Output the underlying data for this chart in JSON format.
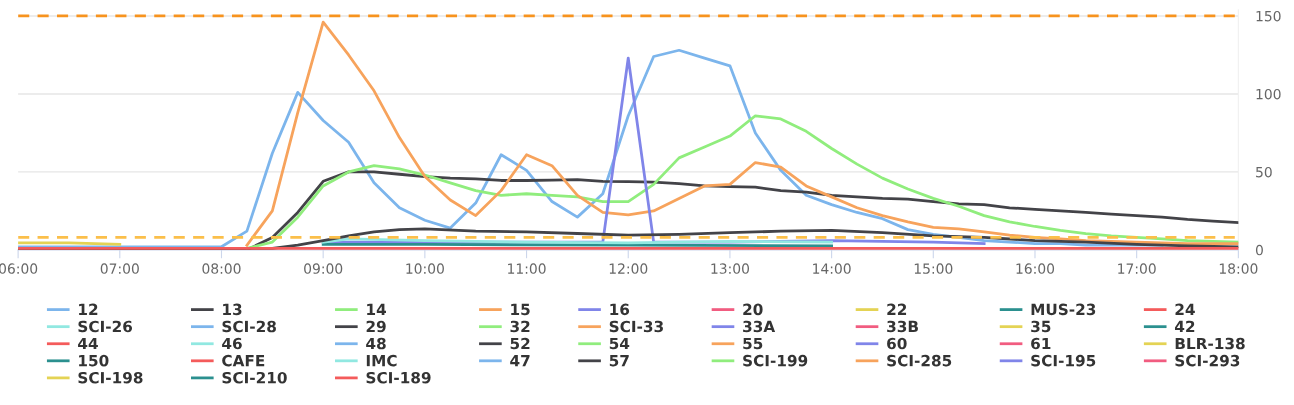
{
  "chart_data": {
    "type": "line",
    "x": [
      6,
      6.25,
      6.5,
      6.75,
      7,
      7.25,
      7.5,
      7.75,
      8,
      8.25,
      8.5,
      8.75,
      9,
      9.25,
      9.5,
      9.75,
      10,
      10.25,
      10.5,
      10.75,
      11,
      11.25,
      11.5,
      11.75,
      12,
      12.25,
      12.5,
      12.75,
      13,
      13.25,
      13.5,
      13.75,
      14,
      14.25,
      14.5,
      14.75,
      15,
      15.25,
      15.5,
      15.75,
      16,
      16.25,
      16.5,
      16.75,
      17,
      17.25,
      17.5,
      17.75,
      18
    ],
    "xlim": [
      6,
      18
    ],
    "xticks": [
      {
        "value": 6,
        "label": "06:00"
      },
      {
        "value": 7,
        "label": "07:00"
      },
      {
        "value": 8,
        "label": "08:00"
      },
      {
        "value": 9,
        "label": "09:00"
      },
      {
        "value": 10,
        "label": "10:00"
      },
      {
        "value": 11,
        "label": "11:00"
      },
      {
        "value": 12,
        "label": "12:00"
      },
      {
        "value": 13,
        "label": "13:00"
      },
      {
        "value": 14,
        "label": "14:00"
      },
      {
        "value": 15,
        "label": "15:00"
      },
      {
        "value": 16,
        "label": "16:00"
      },
      {
        "value": 17,
        "label": "17:00"
      },
      {
        "value": 18,
        "label": "18:00"
      }
    ],
    "ylim": [
      0,
      154
    ],
    "yticks": [
      0,
      50,
      100,
      150
    ],
    "grid": "y",
    "legend": "bottom",
    "marker": "none",
    "line_style": "solid",
    "ref_lines": [
      {
        "axis": "y",
        "value": 150,
        "color": "#f7931e",
        "line_style": "dashed"
      },
      {
        "axis": "y",
        "value": 8,
        "color": "#fbbf4a",
        "line_style": "dashed"
      }
    ],
    "series": [
      {
        "name": "12",
        "color": "#7cb5ec",
        "values": [
          2,
          2,
          2,
          2,
          2,
          2,
          2,
          2,
          2,
          12,
          62,
          101,
          83,
          69,
          43,
          27,
          19,
          14,
          30,
          61,
          51,
          31,
          21,
          36,
          86,
          124,
          128,
          123,
          118,
          75,
          51,
          35,
          29,
          24,
          20,
          13,
          10,
          8,
          6,
          5,
          4,
          4,
          3,
          3,
          3,
          3,
          null,
          null,
          null
        ]
      },
      {
        "name": "13",
        "color": "#434348",
        "values": [
          null,
          null,
          null,
          null,
          null,
          null,
          null,
          null,
          0,
          0,
          8,
          24,
          44,
          50,
          50,
          48.5,
          47,
          46,
          45.5,
          44.5,
          44.5,
          44.7,
          45,
          44,
          43.7,
          43.4,
          42.5,
          41,
          40.5,
          40.2,
          38,
          37,
          35,
          34,
          33,
          32.5,
          31,
          29.5,
          29,
          27,
          26,
          25,
          24,
          23,
          22,
          21,
          19.5,
          18.5,
          17.5
        ]
      },
      {
        "name": "14",
        "color": "#90ed7d",
        "values": [
          null,
          null,
          null,
          null,
          null,
          null,
          null,
          null,
          null,
          1,
          5,
          21,
          41,
          50,
          54,
          52,
          48,
          43,
          38,
          35,
          36,
          35,
          34,
          31,
          31,
          42,
          59,
          66,
          73,
          86,
          84,
          76,
          65,
          55,
          46,
          39,
          33,
          28,
          22,
          18,
          15,
          12.5,
          10.5,
          9,
          8,
          7,
          6,
          5.5,
          5
        ]
      },
      {
        "name": "15",
        "color": "#f7a35c",
        "values": [
          null,
          null,
          null,
          null,
          null,
          null,
          null,
          null,
          null,
          3,
          25,
          88,
          146,
          125,
          102,
          72,
          47,
          32,
          22,
          38,
          61,
          54,
          35,
          24,
          22.5,
          25,
          33,
          41,
          42,
          56,
          53,
          41,
          34,
          27,
          22,
          18,
          14.5,
          13.5,
          11.5,
          9.5,
          8,
          7,
          6,
          5.5,
          5,
          4.5,
          4,
          4,
          4
        ]
      },
      {
        "name": "16",
        "color": "#8085e9",
        "x": [
          9,
          11.75,
          12,
          12.25,
          13,
          14,
          15,
          15.5
        ],
        "values": [
          5,
          5,
          123,
          5,
          5,
          6,
          5,
          4
        ]
      },
      {
        "name": "20",
        "color": "#f15c80",
        "values": [
          null,
          null,
          null,
          null,
          null,
          null,
          null,
          null,
          null,
          null,
          null,
          null,
          null,
          null,
          null,
          null,
          null,
          null,
          null,
          null,
          null,
          null,
          null,
          null,
          null,
          null,
          null,
          null,
          null,
          null,
          null,
          null,
          null,
          null,
          null,
          null,
          null,
          null,
          null,
          null,
          null,
          null,
          null,
          null,
          null,
          null,
          null,
          null,
          null
        ]
      },
      {
        "name": "22",
        "color": "#e4d354",
        "x": [
          6,
          6.5,
          7
        ],
        "values": [
          4.5,
          4.5,
          3.5
        ]
      },
      {
        "name": "MUS-23",
        "color": "#2b908f",
        "x": [
          9,
          10,
          12,
          14
        ],
        "values": [
          3.5,
          3.5,
          3,
          2.5
        ]
      },
      {
        "name": "24",
        "color": "#f45b5b",
        "values": [
          null,
          null,
          null,
          null,
          null,
          null,
          null,
          null,
          null,
          null,
          null,
          null,
          null,
          null,
          null,
          null,
          null,
          null,
          null,
          null,
          null,
          null,
          null,
          null,
          null,
          null,
          null,
          null,
          null,
          null,
          null,
          null,
          null,
          null,
          null,
          null,
          null,
          null,
          null,
          null,
          null,
          null,
          null,
          null,
          null,
          null,
          null,
          null,
          null
        ]
      },
      {
        "name": "SCI-26",
        "color": "#91e8e1",
        "x": [
          9,
          9.25,
          10,
          11,
          12,
          13,
          14
        ],
        "values": [
          5,
          7,
          6,
          5,
          4.5,
          5.5,
          5
        ]
      },
      {
        "name": "SCI-28",
        "color": "#7cb5ec",
        "values": [
          null,
          null,
          null,
          null,
          null,
          null,
          null,
          null,
          null,
          null,
          null,
          null,
          null,
          null,
          null,
          null,
          null,
          null,
          null,
          null,
          null,
          null,
          null,
          null,
          null,
          null,
          null,
          null,
          null,
          null,
          null,
          null,
          null,
          null,
          null,
          null,
          null,
          null,
          null,
          null,
          null,
          null,
          null,
          null,
          null,
          null,
          null,
          null,
          null
        ]
      },
      {
        "name": "29",
        "color": "#434348",
        "x": [
          6,
          8.5,
          8.75,
          9,
          9.25,
          9.5,
          9.75,
          10,
          10.5,
          11,
          11.5,
          12,
          12.5,
          13,
          13.5,
          14,
          14.5,
          15,
          15.5,
          16,
          16.5,
          17,
          17.5,
          18
        ],
        "values": [
          0,
          1,
          3,
          6,
          9,
          11.5,
          13,
          13.5,
          12,
          11.5,
          10.5,
          9.5,
          10,
          11,
          12,
          12.5,
          11,
          9,
          8,
          6,
          5,
          3.5,
          2.5,
          2
        ]
      },
      {
        "name": "32",
        "color": "#90ed7d",
        "values": [
          null,
          null,
          null,
          null,
          null,
          null,
          null,
          null,
          null,
          null,
          null,
          null,
          null,
          null,
          null,
          null,
          null,
          null,
          null,
          null,
          null,
          null,
          null,
          null,
          null,
          null,
          null,
          null,
          null,
          null,
          null,
          null,
          null,
          null,
          null,
          null,
          null,
          null,
          null,
          null,
          null,
          null,
          null,
          null,
          null,
          null,
          null,
          null,
          null
        ]
      },
      {
        "name": "SCI-33",
        "color": "#f7a35c",
        "values": [
          null,
          null,
          null,
          null,
          null,
          null,
          null,
          null,
          null,
          null,
          null,
          null,
          null,
          null,
          null,
          null,
          null,
          null,
          null,
          null,
          null,
          null,
          null,
          null,
          null,
          null,
          null,
          null,
          null,
          null,
          null,
          null,
          null,
          null,
          null,
          null,
          null,
          null,
          null,
          null,
          null,
          null,
          null,
          null,
          null,
          null,
          null,
          null,
          null
        ]
      },
      {
        "name": "33A",
        "color": "#8085e9",
        "values": [
          null,
          null,
          null,
          null,
          null,
          null,
          null,
          null,
          null,
          null,
          null,
          null,
          null,
          null,
          null,
          null,
          null,
          null,
          null,
          null,
          null,
          null,
          null,
          null,
          null,
          null,
          null,
          null,
          null,
          null,
          null,
          null,
          null,
          null,
          null,
          null,
          null,
          null,
          null,
          null,
          null,
          null,
          null,
          null,
          null,
          null,
          null,
          null,
          null
        ]
      },
      {
        "name": "33B",
        "color": "#f15c80",
        "values": [
          null,
          null,
          null,
          null,
          null,
          null,
          null,
          null,
          null,
          null,
          null,
          null,
          null,
          null,
          null,
          null,
          null,
          null,
          null,
          null,
          null,
          null,
          null,
          null,
          null,
          null,
          null,
          null,
          null,
          null,
          null,
          null,
          null,
          null,
          null,
          null,
          null,
          null,
          null,
          null,
          null,
          null,
          null,
          null,
          null,
          null,
          null,
          null,
          null
        ]
      },
      {
        "name": "35",
        "color": "#e4d354",
        "values": [
          null,
          null,
          null,
          null,
          null,
          null,
          null,
          null,
          null,
          null,
          null,
          null,
          null,
          null,
          null,
          null,
          null,
          null,
          null,
          null,
          null,
          null,
          null,
          null,
          null,
          null,
          null,
          null,
          null,
          null,
          null,
          null,
          null,
          null,
          null,
          null,
          null,
          null,
          null,
          null,
          null,
          null,
          null,
          null,
          null,
          null,
          null,
          null,
          null
        ]
      },
      {
        "name": "42",
        "color": "#2b908f",
        "values": [
          null,
          null,
          null,
          null,
          null,
          null,
          null,
          null,
          null,
          null,
          null,
          null,
          null,
          null,
          null,
          null,
          null,
          null,
          null,
          null,
          null,
          null,
          null,
          null,
          null,
          null,
          null,
          null,
          null,
          null,
          null,
          null,
          null,
          null,
          null,
          null,
          null,
          null,
          null,
          null,
          null,
          null,
          null,
          null,
          null,
          null,
          null,
          null,
          null
        ]
      },
      {
        "name": "44",
        "color": "#f45b5b",
        "values": [
          null,
          null,
          null,
          null,
          null,
          null,
          null,
          null,
          null,
          null,
          null,
          null,
          null,
          null,
          null,
          null,
          null,
          null,
          null,
          null,
          null,
          null,
          null,
          null,
          null,
          null,
          null,
          null,
          null,
          null,
          null,
          null,
          null,
          null,
          null,
          null,
          null,
          null,
          null,
          null,
          null,
          null,
          null,
          null,
          null,
          null,
          null,
          null,
          null
        ]
      },
      {
        "name": "46",
        "color": "#91e8e1",
        "values": [
          null,
          null,
          null,
          null,
          null,
          null,
          null,
          null,
          null,
          null,
          null,
          null,
          null,
          null,
          null,
          null,
          null,
          null,
          null,
          null,
          null,
          null,
          null,
          null,
          null,
          null,
          null,
          null,
          null,
          null,
          null,
          null,
          null,
          null,
          null,
          null,
          null,
          null,
          null,
          null,
          null,
          null,
          null,
          null,
          null,
          null,
          null,
          null,
          null
        ]
      },
      {
        "name": "48",
        "color": "#7cb5ec",
        "values": [
          null,
          null,
          null,
          null,
          null,
          null,
          null,
          null,
          null,
          null,
          null,
          null,
          null,
          null,
          null,
          null,
          null,
          null,
          null,
          null,
          null,
          null,
          null,
          null,
          null,
          null,
          null,
          null,
          null,
          null,
          null,
          null,
          null,
          null,
          null,
          null,
          null,
          null,
          null,
          null,
          null,
          null,
          null,
          null,
          null,
          null,
          null,
          null,
          null
        ]
      },
      {
        "name": "52",
        "color": "#434348",
        "values": [
          null,
          null,
          null,
          null,
          null,
          null,
          null,
          null,
          null,
          null,
          null,
          null,
          null,
          null,
          null,
          null,
          null,
          null,
          null,
          null,
          null,
          null,
          null,
          null,
          null,
          null,
          null,
          null,
          null,
          null,
          null,
          null,
          null,
          null,
          null,
          null,
          null,
          null,
          null,
          null,
          null,
          null,
          null,
          null,
          null,
          null,
          null,
          null,
          null
        ]
      },
      {
        "name": "54",
        "color": "#90ed7d",
        "values": [
          null,
          null,
          null,
          null,
          null,
          null,
          null,
          null,
          null,
          null,
          null,
          null,
          null,
          null,
          null,
          null,
          null,
          null,
          null,
          null,
          null,
          null,
          null,
          null,
          null,
          null,
          null,
          null,
          null,
          null,
          null,
          null,
          null,
          null,
          null,
          null,
          null,
          null,
          null,
          null,
          null,
          null,
          null,
          null,
          null,
          null,
          null,
          null,
          null
        ]
      },
      {
        "name": "55",
        "color": "#f7a35c",
        "values": [
          null,
          null,
          null,
          null,
          null,
          null,
          null,
          null,
          null,
          null,
          null,
          null,
          null,
          null,
          null,
          null,
          null,
          null,
          null,
          null,
          null,
          null,
          null,
          null,
          null,
          null,
          null,
          null,
          null,
          null,
          null,
          null,
          null,
          null,
          null,
          null,
          null,
          null,
          null,
          null,
          null,
          null,
          null,
          null,
          null,
          null,
          null,
          null,
          null
        ]
      },
      {
        "name": "60",
        "color": "#8085e9",
        "values": [
          null,
          null,
          null,
          null,
          null,
          null,
          null,
          null,
          null,
          null,
          null,
          null,
          null,
          null,
          null,
          null,
          null,
          null,
          null,
          null,
          null,
          null,
          null,
          null,
          null,
          null,
          null,
          null,
          null,
          null,
          null,
          null,
          null,
          null,
          null,
          null,
          null,
          null,
          null,
          null,
          null,
          null,
          null,
          null,
          null,
          null,
          null,
          null,
          null
        ]
      },
      {
        "name": "61",
        "color": "#f15c80",
        "values": [
          null,
          null,
          null,
          null,
          null,
          null,
          null,
          null,
          null,
          null,
          null,
          null,
          null,
          null,
          null,
          null,
          null,
          null,
          null,
          null,
          null,
          null,
          null,
          null,
          null,
          null,
          null,
          null,
          null,
          null,
          null,
          null,
          null,
          null,
          null,
          null,
          null,
          null,
          null,
          null,
          null,
          null,
          null,
          null,
          null,
          null,
          null,
          null,
          null
        ]
      },
      {
        "name": "BLR-138",
        "color": "#e4d354",
        "values": [
          null,
          null,
          null,
          null,
          null,
          null,
          null,
          null,
          null,
          null,
          null,
          null,
          null,
          null,
          null,
          null,
          null,
          null,
          null,
          null,
          null,
          null,
          null,
          null,
          null,
          null,
          null,
          null,
          null,
          null,
          null,
          null,
          null,
          null,
          null,
          null,
          null,
          null,
          null,
          null,
          null,
          null,
          null,
          null,
          null,
          null,
          null,
          null,
          null
        ]
      },
      {
        "name": "150",
        "color": "#2b908f",
        "values": [
          null,
          null,
          null,
          null,
          null,
          null,
          null,
          null,
          null,
          null,
          null,
          null,
          null,
          null,
          null,
          null,
          null,
          null,
          null,
          null,
          null,
          null,
          null,
          null,
          null,
          null,
          null,
          null,
          null,
          null,
          null,
          null,
          null,
          null,
          null,
          null,
          null,
          null,
          null,
          null,
          null,
          null,
          null,
          null,
          null,
          null,
          null,
          null,
          null
        ]
      },
      {
        "name": "CAFE",
        "color": "#f45b5b",
        "values": [
          null,
          null,
          null,
          null,
          null,
          null,
          null,
          null,
          null,
          null,
          null,
          null,
          null,
          null,
          null,
          null,
          null,
          null,
          null,
          null,
          null,
          null,
          null,
          null,
          null,
          null,
          null,
          null,
          null,
          null,
          null,
          null,
          null,
          null,
          null,
          null,
          null,
          null,
          null,
          null,
          null,
          null,
          null,
          null,
          null,
          null,
          null,
          null,
          null
        ]
      },
      {
        "name": "IMC",
        "color": "#91e8e1",
        "values": [
          null,
          null,
          null,
          null,
          null,
          null,
          null,
          null,
          null,
          null,
          null,
          null,
          null,
          null,
          null,
          null,
          null,
          null,
          null,
          null,
          null,
          null,
          null,
          null,
          null,
          null,
          null,
          null,
          null,
          null,
          null,
          null,
          null,
          null,
          null,
          null,
          null,
          null,
          null,
          null,
          null,
          null,
          null,
          null,
          null,
          null,
          null,
          null,
          null
        ]
      },
      {
        "name": "47",
        "color": "#7cb5ec",
        "values": [
          null,
          null,
          null,
          null,
          null,
          null,
          null,
          null,
          null,
          null,
          null,
          null,
          null,
          null,
          null,
          null,
          null,
          null,
          null,
          null,
          null,
          null,
          null,
          null,
          null,
          null,
          null,
          null,
          null,
          null,
          null,
          null,
          null,
          null,
          null,
          null,
          null,
          null,
          null,
          null,
          null,
          null,
          null,
          null,
          null,
          null,
          null,
          null,
          null
        ]
      },
      {
        "name": "57",
        "color": "#434348",
        "values": [
          null,
          null,
          null,
          null,
          null,
          null,
          null,
          null,
          null,
          null,
          null,
          null,
          null,
          null,
          null,
          null,
          null,
          null,
          null,
          null,
          null,
          null,
          null,
          null,
          null,
          null,
          null,
          null,
          null,
          null,
          null,
          null,
          null,
          null,
          null,
          null,
          null,
          null,
          null,
          null,
          null,
          null,
          null,
          null,
          null,
          null,
          null,
          null,
          null
        ]
      },
      {
        "name": "SCI-199",
        "color": "#90ed7d",
        "values": [
          null,
          null,
          null,
          null,
          null,
          null,
          null,
          null,
          null,
          null,
          null,
          null,
          null,
          null,
          null,
          null,
          null,
          null,
          null,
          null,
          null,
          null,
          null,
          null,
          null,
          null,
          null,
          null,
          null,
          null,
          null,
          null,
          null,
          null,
          null,
          null,
          null,
          null,
          null,
          null,
          null,
          null,
          null,
          null,
          null,
          null,
          null,
          null,
          null
        ]
      },
      {
        "name": "SCI-285",
        "color": "#f7a35c",
        "values": [
          null,
          null,
          null,
          null,
          null,
          null,
          null,
          null,
          null,
          null,
          null,
          null,
          null,
          null,
          null,
          null,
          null,
          null,
          null,
          null,
          null,
          null,
          null,
          null,
          null,
          null,
          null,
          null,
          null,
          null,
          null,
          null,
          null,
          null,
          null,
          null,
          null,
          null,
          null,
          null,
          null,
          null,
          null,
          null,
          null,
          null,
          null,
          null,
          null
        ]
      },
      {
        "name": "SCI-195",
        "color": "#8085e9",
        "values": [
          null,
          null,
          null,
          null,
          null,
          null,
          null,
          null,
          null,
          null,
          null,
          null,
          null,
          null,
          null,
          null,
          null,
          null,
          null,
          null,
          null,
          null,
          null,
          null,
          null,
          null,
          null,
          null,
          null,
          null,
          null,
          null,
          null,
          null,
          null,
          null,
          null,
          null,
          null,
          null,
          null,
          null,
          null,
          null,
          null,
          null,
          null,
          null,
          null
        ]
      },
      {
        "name": "SCI-293",
        "color": "#f15c80",
        "values": [
          null,
          null,
          null,
          null,
          null,
          null,
          null,
          null,
          null,
          null,
          null,
          null,
          null,
          null,
          null,
          null,
          null,
          null,
          null,
          null,
          null,
          null,
          null,
          null,
          null,
          null,
          null,
          null,
          null,
          null,
          null,
          null,
          null,
          null,
          null,
          null,
          null,
          null,
          null,
          null,
          null,
          null,
          null,
          null,
          null,
          null,
          null,
          null,
          null
        ]
      },
      {
        "name": "SCI-198",
        "color": "#e4d354",
        "values": [
          null,
          null,
          null,
          null,
          null,
          null,
          null,
          null,
          null,
          null,
          null,
          null,
          null,
          null,
          null,
          null,
          null,
          null,
          null,
          null,
          null,
          null,
          null,
          null,
          null,
          null,
          null,
          null,
          null,
          null,
          null,
          null,
          null,
          null,
          null,
          null,
          null,
          null,
          null,
          null,
          null,
          null,
          null,
          null,
          null,
          null,
          null,
          null,
          null
        ]
      },
      {
        "name": "SCI-210",
        "color": "#2b908f",
        "values": [
          null,
          null,
          null,
          null,
          null,
          null,
          null,
          null,
          null,
          null,
          null,
          null,
          null,
          null,
          null,
          null,
          null,
          null,
          null,
          null,
          null,
          null,
          null,
          null,
          null,
          null,
          null,
          null,
          null,
          null,
          null,
          null,
          null,
          null,
          null,
          null,
          null,
          null,
          null,
          null,
          null,
          null,
          null,
          null,
          null,
          null,
          null,
          null,
          null
        ]
      },
      {
        "name": "SCI-189",
        "color": "#f45b5b",
        "x": [
          6,
          8,
          10,
          12,
          14,
          16,
          18
        ],
        "values": [
          1,
          1,
          1,
          1,
          1,
          1,
          1
        ]
      }
    ]
  }
}
